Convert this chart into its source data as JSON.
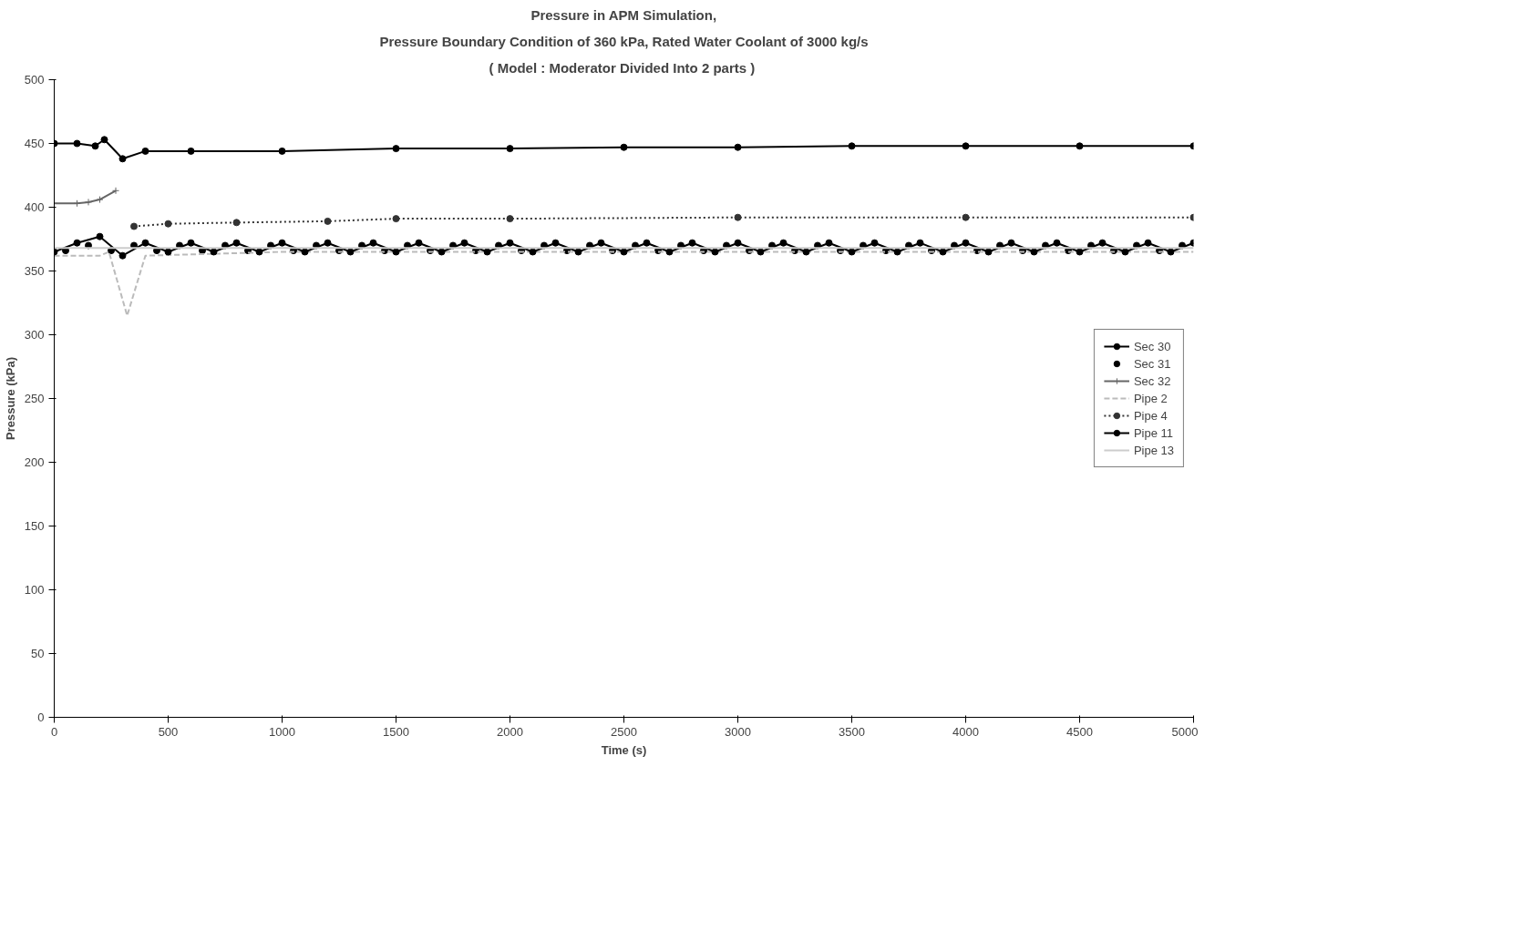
{
  "chart_data": {
    "type": "line",
    "title": "Pressure in APM Simulation,",
    "subtitle": "Pressure Boundary Condition of 360 kPa, Rated Water Coolant of 3000 kg/s",
    "annotations": [
      "( Model :  Moderator Divided Into 2 parts )"
    ],
    "xlabel": "Time (s)",
    "ylabel": "Pressure (kPa)",
    "xlim": [
      0,
      5000
    ],
    "ylim": [
      0,
      500
    ],
    "xticks": [
      0,
      500,
      1000,
      1500,
      2000,
      2500,
      3000,
      3500,
      4000,
      4500,
      5000
    ],
    "yticks": [
      0,
      50,
      100,
      150,
      200,
      250,
      300,
      350,
      400,
      450,
      500
    ],
    "grid": false,
    "legend": "right",
    "series": [
      {
        "name": "Sec 30",
        "color": "#000000",
        "marker": "circle",
        "line_style": "solid",
        "x": [
          0,
          100,
          180,
          220,
          300,
          400,
          600,
          1000,
          1500,
          2000,
          2500,
          3000,
          3500,
          4000,
          4500,
          5000
        ],
        "values": [
          450,
          450,
          448,
          453,
          438,
          444,
          444,
          444,
          446,
          446,
          447,
          447,
          448,
          448,
          448,
          448
        ]
      },
      {
        "name": "Sec 31",
        "type": "scatter",
        "color": "#000000",
        "marker": "circle",
        "x": [
          50,
          150,
          250,
          350,
          450,
          550,
          650,
          750,
          850,
          950,
          1050,
          1150,
          1250,
          1350,
          1450,
          1550,
          1650,
          1750,
          1850,
          1950,
          2050,
          2150,
          2250,
          2350,
          2450,
          2550,
          2650,
          2750,
          2850,
          2950,
          3050,
          3150,
          3250,
          3350,
          3450,
          3550,
          3650,
          3750,
          3850,
          3950,
          4050,
          4150,
          4250,
          4350,
          4450,
          4550,
          4650,
          4750,
          4850,
          4950
        ],
        "values": [
          366,
          370,
          366,
          370,
          366,
          370,
          366,
          370,
          366,
          370,
          366,
          370,
          366,
          370,
          366,
          370,
          366,
          370,
          366,
          370,
          366,
          370,
          366,
          370,
          366,
          370,
          366,
          370,
          366,
          370,
          366,
          370,
          366,
          370,
          366,
          370,
          366,
          370,
          366,
          370,
          366,
          370,
          366,
          370,
          366,
          370,
          366,
          370,
          366,
          370
        ]
      },
      {
        "name": "Sec 32",
        "color": "#666666",
        "marker": "cross",
        "line_style": "solid",
        "x": [
          0,
          100,
          150,
          200,
          270
        ],
        "values": [
          403,
          403,
          404,
          406,
          413
        ]
      },
      {
        "name": "Pipe 2",
        "color": "#bbbbbb",
        "marker": "none",
        "line_style": "dashed",
        "x": [
          0,
          200,
          240,
          280,
          320,
          400,
          1000,
          2000,
          3000,
          4000,
          5000
        ],
        "values": [
          362,
          362,
          365,
          340,
          315,
          362,
          365,
          365,
          365,
          365,
          365
        ]
      },
      {
        "name": "Pipe 4",
        "color": "#333333",
        "marker": "circle",
        "line_style": "dotted",
        "x": [
          350,
          500,
          800,
          1200,
          1500,
          2000,
          3000,
          4000,
          5000
        ],
        "values": [
          385,
          387,
          388,
          389,
          391,
          391,
          392,
          392,
          392
        ]
      },
      {
        "name": "Pipe 11",
        "color": "#000000",
        "marker": "circle",
        "line_style": "solid",
        "x": [
          0,
          100,
          200,
          300,
          400,
          500,
          600,
          700,
          800,
          900,
          1000,
          1100,
          1200,
          1300,
          1400,
          1500,
          1600,
          1700,
          1800,
          1900,
          2000,
          2100,
          2200,
          2300,
          2400,
          2500,
          2600,
          2700,
          2800,
          2900,
          3000,
          3100,
          3200,
          3300,
          3400,
          3500,
          3600,
          3700,
          3800,
          3900,
          4000,
          4100,
          4200,
          4300,
          4400,
          4500,
          4600,
          4700,
          4800,
          4900,
          5000
        ],
        "values": [
          365,
          372,
          377,
          362,
          372,
          365,
          372,
          365,
          372,
          365,
          372,
          365,
          372,
          365,
          372,
          365,
          372,
          365,
          372,
          365,
          372,
          365,
          372,
          365,
          372,
          365,
          372,
          365,
          372,
          365,
          372,
          365,
          372,
          365,
          372,
          365,
          372,
          365,
          372,
          365,
          372,
          365,
          372,
          365,
          372,
          365,
          372,
          365,
          372,
          365,
          372
        ]
      },
      {
        "name": "Pipe 13",
        "color": "#cccccc",
        "marker": "none",
        "line_style": "solid",
        "x": [
          0,
          1000,
          2000,
          3000,
          4000,
          5000
        ],
        "values": [
          368,
          368,
          368,
          368,
          368,
          368
        ]
      }
    ]
  }
}
